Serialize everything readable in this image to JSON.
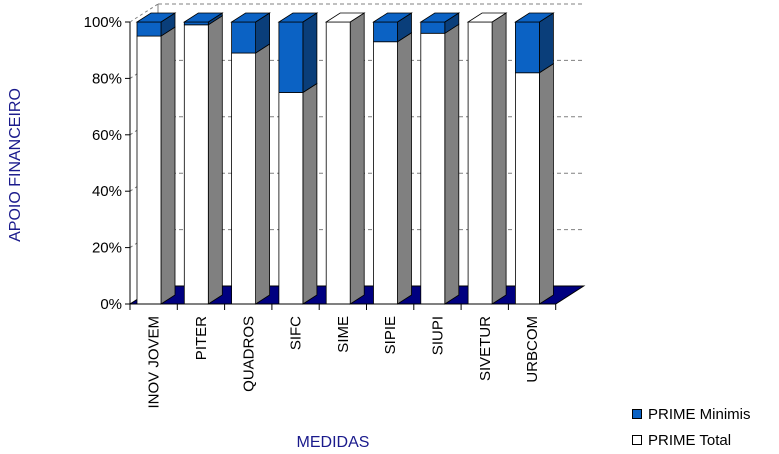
{
  "chart_data": {
    "type": "bar",
    "stacked": true,
    "percent_stacked": true,
    "three_d": true,
    "categories": [
      "INOV JOVEM",
      "PITER",
      "QUADROS",
      "SIFC",
      "SIME",
      "SIPIE",
      "SIUPI",
      "SIVETUR",
      "URBCOM"
    ],
    "series": [
      {
        "name": "PRIME Total",
        "values": [
          95,
          99,
          89,
          75,
          100,
          93,
          96,
          100,
          82
        ],
        "color": "#ffffff"
      },
      {
        "name": "PRIME Minimis",
        "values": [
          5,
          1,
          11,
          25,
          0,
          7,
          4,
          0,
          18
        ],
        "color": "#0b62c4"
      }
    ],
    "xlabel": "MEDIDAS",
    "ylabel": "APOIO FINANCEIRO",
    "yticks": [
      "0%",
      "20%",
      "40%",
      "60%",
      "80%",
      "100%"
    ],
    "ylim": [
      0,
      100
    ],
    "grid": true,
    "legend_position": "bottom-right",
    "colors": {
      "floor": "#000080",
      "side": "#808080",
      "text": "#1a1a8c"
    }
  }
}
